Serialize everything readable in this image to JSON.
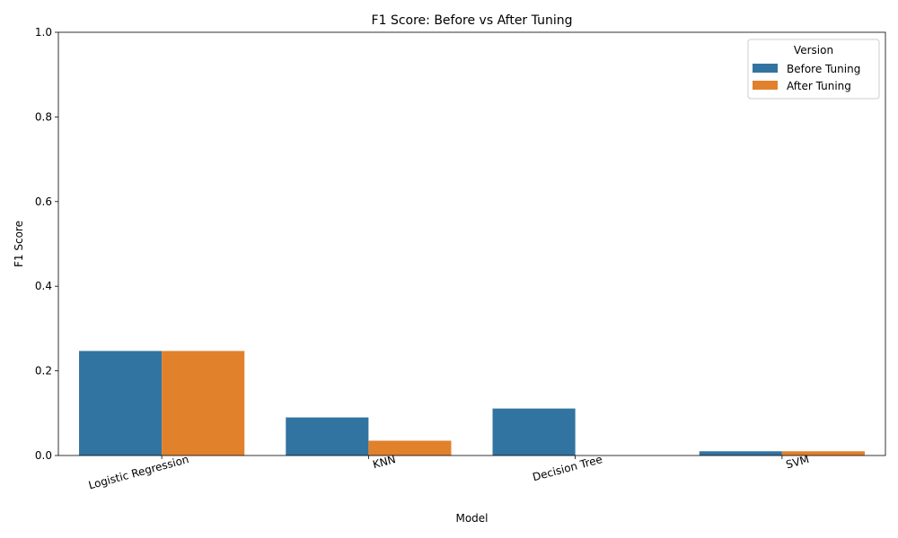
{
  "chart_data": {
    "type": "bar",
    "title": "F1 Score: Before vs After Tuning",
    "xlabel": "Model",
    "ylabel": "F1 Score",
    "ylim": [
      0,
      1
    ],
    "yticks": [
      "0.0",
      "0.2",
      "0.4",
      "0.6",
      "0.8",
      "1.0"
    ],
    "categories": [
      "Logistic Regression",
      "KNN",
      "Decision Tree",
      "SVM"
    ],
    "series": [
      {
        "name": "Before Tuning",
        "color": "#3274a1",
        "values": [
          0.247,
          0.09,
          0.111,
          0.01
        ]
      },
      {
        "name": "After Tuning",
        "color": "#e1812c",
        "values": [
          0.247,
          0.035,
          0.0,
          0.01
        ]
      }
    ],
    "legend": {
      "title": "Version",
      "placement": "top-right"
    },
    "grid": false
  }
}
